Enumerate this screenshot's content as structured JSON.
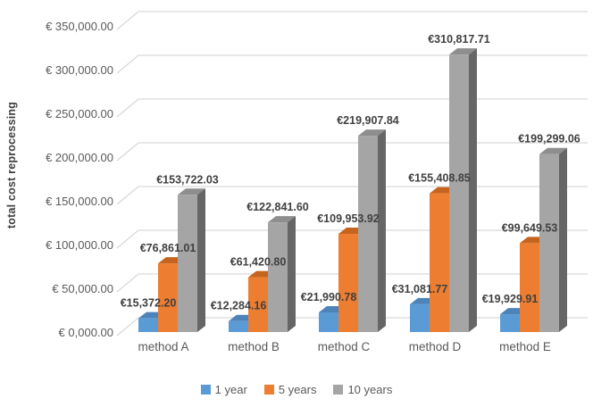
{
  "chart_data": {
    "type": "bar",
    "style": "3d-clustered-column",
    "title": "",
    "xlabel": "",
    "ylabel": "total cost reprocessing",
    "categories": [
      "method A",
      "method B",
      "method C",
      "method D",
      "method E"
    ],
    "series": [
      {
        "name": "1 year",
        "color": "#5B9BD5",
        "color_top": "#4D83B8",
        "color_side": "#3E6A99",
        "values": [
          15372.2,
          12284.16,
          21990.78,
          31081.77,
          19929.91
        ],
        "labels": [
          "€15,372.20",
          "€12,284.16",
          "€21,990.78",
          "€31,081.77",
          "€19,929.91"
        ]
      },
      {
        "name": "5 years",
        "color": "#ED7D31",
        "color_top": "#C4641F",
        "color_side": "#A0521E",
        "values": [
          76861.01,
          61420.8,
          109953.92,
          155408.85,
          99649.53
        ],
        "labels": [
          "€76,861.01",
          "€61,420.80",
          "€109,953.92",
          "€155,408.85",
          "€99,649.53"
        ]
      },
      {
        "name": "10 years",
        "color": "#A5A5A5",
        "color_top": "#8E8E8E",
        "color_side": "#666666",
        "values": [
          153722.03,
          122841.6,
          219907.84,
          310817.71,
          199299.06
        ],
        "labels": [
          "€153,722.03",
          "€122,841.60",
          "€219,907.84",
          "€310,817.71",
          "€199,299.06"
        ]
      }
    ],
    "y_ticks": [
      {
        "value": 350000,
        "label": "€ 350,000.00"
      },
      {
        "value": 300000,
        "label": "€ 300,000.00"
      },
      {
        "value": 250000,
        "label": "€ 250,000.00"
      },
      {
        "value": 200000,
        "label": "€ 200,000.00"
      },
      {
        "value": 150000,
        "label": "€ 150,000.00"
      },
      {
        "value": 100000,
        "label": "€ 100,000.00"
      },
      {
        "value": 50000,
        "label": "€ 50,000.00"
      },
      {
        "value": 0,
        "label": "€ 0,000.00"
      }
    ],
    "ylim": [
      0,
      350000
    ],
    "grid": true,
    "legend_position": "bottom",
    "colors": {
      "gridline": "#D9D9D9",
      "tick_label": "#595959",
      "data_label": "#404040",
      "axis_title": "#404040",
      "category_label": "#595959",
      "legend_label": "#595959"
    }
  }
}
